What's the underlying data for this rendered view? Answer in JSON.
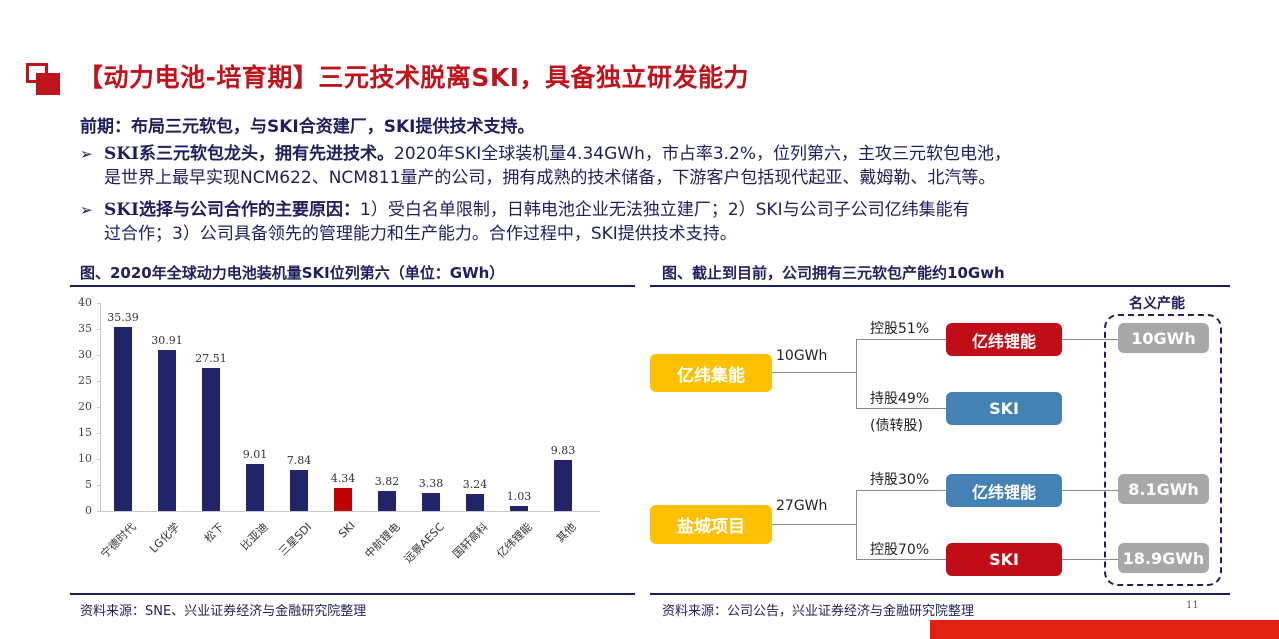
{
  "header": {
    "title": "【动力电池-培育期】三元技术脱离SKI，具备独立研发能力",
    "subhead": "前期：布局三元软包，与SKI合资建厂，SKI提供技术支持。"
  },
  "bullets": [
    {
      "marker": "➢",
      "bold": "SKI系三元软包龙头，拥有先进技术。",
      "line1": "2020年SKI全球装机量4.34GWh，市占率3.2%，位列第六，主攻三元软包电池，",
      "line2": "是世界上最早实现NCM622、NCM811量产的公司，拥有成熟的技术储备，下游客户包括现代起亚、戴姆勒、北汽等。"
    },
    {
      "marker": "➢",
      "bold": "SKI选择与公司合作的主要原因：",
      "line1": "1）受白名单限制，日韩电池企业无法独立建厂；2）SKI与公司子公司亿纬集能有",
      "line2": "过合作；3）公司具备领先的管理能力和生产能力。合作过程中，SKI提供技术支持。"
    }
  ],
  "left_panel": {
    "title": "图、2020年全球动力电池装机量SKI位列第六（单位：GWh）",
    "source": "资料来源：SNE、兴业证券经济与金融研究院整理"
  },
  "chart_data": {
    "type": "bar",
    "title": "图、2020年全球动力电池装机量SKI位列第六（单位：GWh）",
    "xlabel": "",
    "ylabel": "GWh",
    "ylim": [
      0,
      40
    ],
    "yticks": [
      "0",
      "5",
      "10",
      "15",
      "20",
      "25",
      "30",
      "35",
      "40"
    ],
    "categories": [
      "宁德时代",
      "LG化学",
      "松下",
      "比亚迪",
      "三星SDI",
      "SKI",
      "中航锂电",
      "远景AESC",
      "国轩高科",
      "亿纬锂能",
      "其他"
    ],
    "values": [
      35.39,
      30.91,
      27.51,
      9.01,
      7.84,
      4.34,
      3.82,
      3.38,
      3.24,
      1.03,
      9.83
    ],
    "value_labels": [
      "35.39",
      "30.91",
      "27.51",
      "9.01",
      "7.84",
      "4.34",
      "3.82",
      "3.38",
      "3.24",
      "1.03",
      "9.83"
    ],
    "highlight_index": 5,
    "colors": {
      "default": "#23256b",
      "highlight": "#c00000"
    },
    "grid": false,
    "legend": null
  },
  "right_panel": {
    "title": "图、截止到目前，公司拥有三元软包产能约10Gwh",
    "source": "资料来源：公司公告，兴业证券经济与金融研究院整理",
    "capacity_header": "名义产能",
    "groups": [
      {
        "root": "亿纬集能",
        "root_capacity": "10GWh",
        "children": [
          {
            "relation": "控股51%",
            "name": "亿纬锂能",
            "color": "red",
            "capacity": "10GWh"
          },
          {
            "relation": "持股49%",
            "relation_note": "(债转股)",
            "name": "SKI",
            "color": "blue",
            "capacity": null
          }
        ]
      },
      {
        "root": "盐城项目",
        "root_capacity": "27GWh",
        "children": [
          {
            "relation": "持股30%",
            "name": "亿纬锂能",
            "color": "blue",
            "capacity": "8.1GWh"
          },
          {
            "relation": "控股70%",
            "name": "SKI",
            "color": "red",
            "capacity": "18.9GWh"
          }
        ]
      }
    ]
  },
  "footer": {
    "page_number": "11"
  }
}
